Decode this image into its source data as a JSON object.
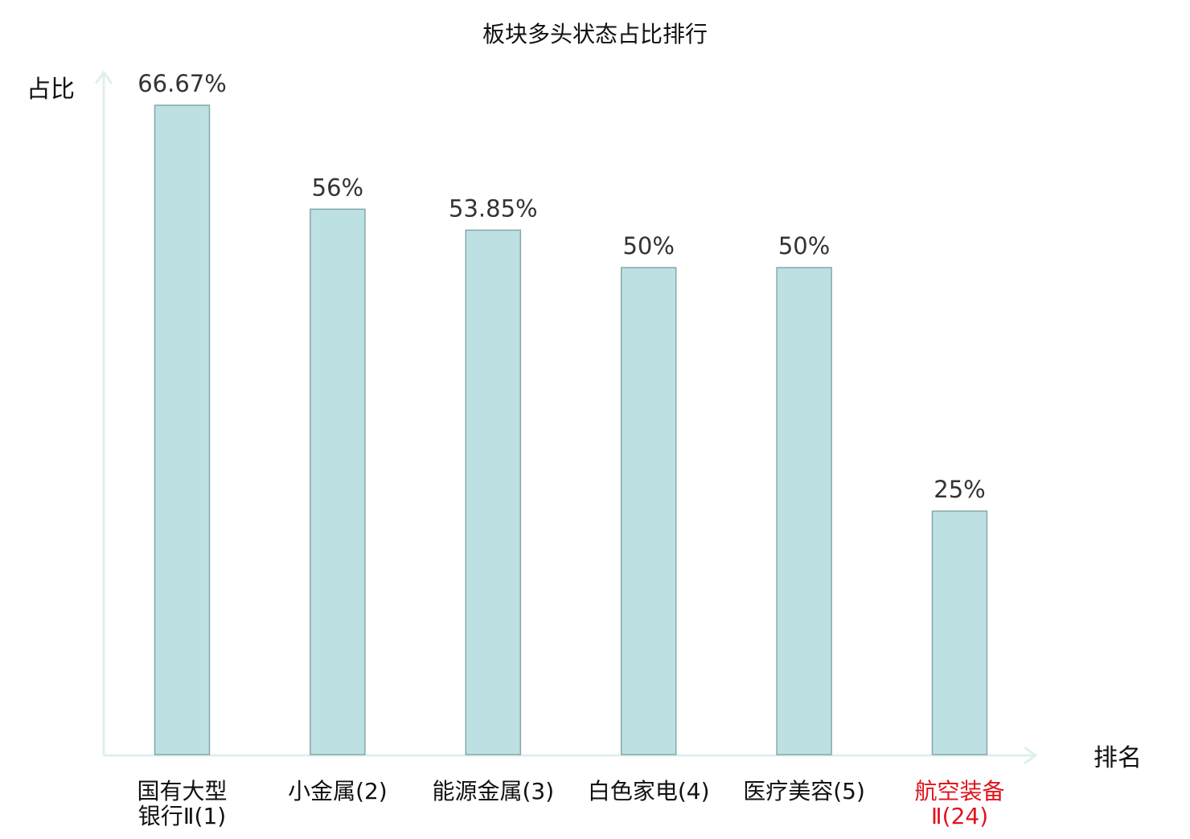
{
  "chart_data": {
    "type": "bar",
    "title": "板块多头状态占比排行",
    "ylabel": "占比",
    "xlabel": "排名",
    "categories": [
      {
        "lines": [
          "国有大型",
          "银行Ⅱ(1)"
        ],
        "highlight": false
      },
      {
        "lines": [
          "小金属(2)"
        ],
        "highlight": false
      },
      {
        "lines": [
          "能源金属(3)"
        ],
        "highlight": false
      },
      {
        "lines": [
          "白色家电(4)"
        ],
        "highlight": false
      },
      {
        "lines": [
          "医疗美容(5)"
        ],
        "highlight": false
      },
      {
        "lines": [
          "航空装备",
          "Ⅱ(24)"
        ],
        "highlight": true
      }
    ],
    "values": [
      66.67,
      56,
      53.85,
      50,
      50,
      25
    ],
    "value_labels": [
      "66.67%",
      "56%",
      "53.85%",
      "50%",
      "50%",
      "25%"
    ],
    "ylim": [
      0,
      66.67
    ],
    "grid": false,
    "colors": {
      "bar_fill": "#bde0e2",
      "bar_stroke": "#86a7aa",
      "axis": "#dff0ee",
      "text": "#333333",
      "label_text": "#111111",
      "highlight_text": "#e0141e"
    }
  }
}
